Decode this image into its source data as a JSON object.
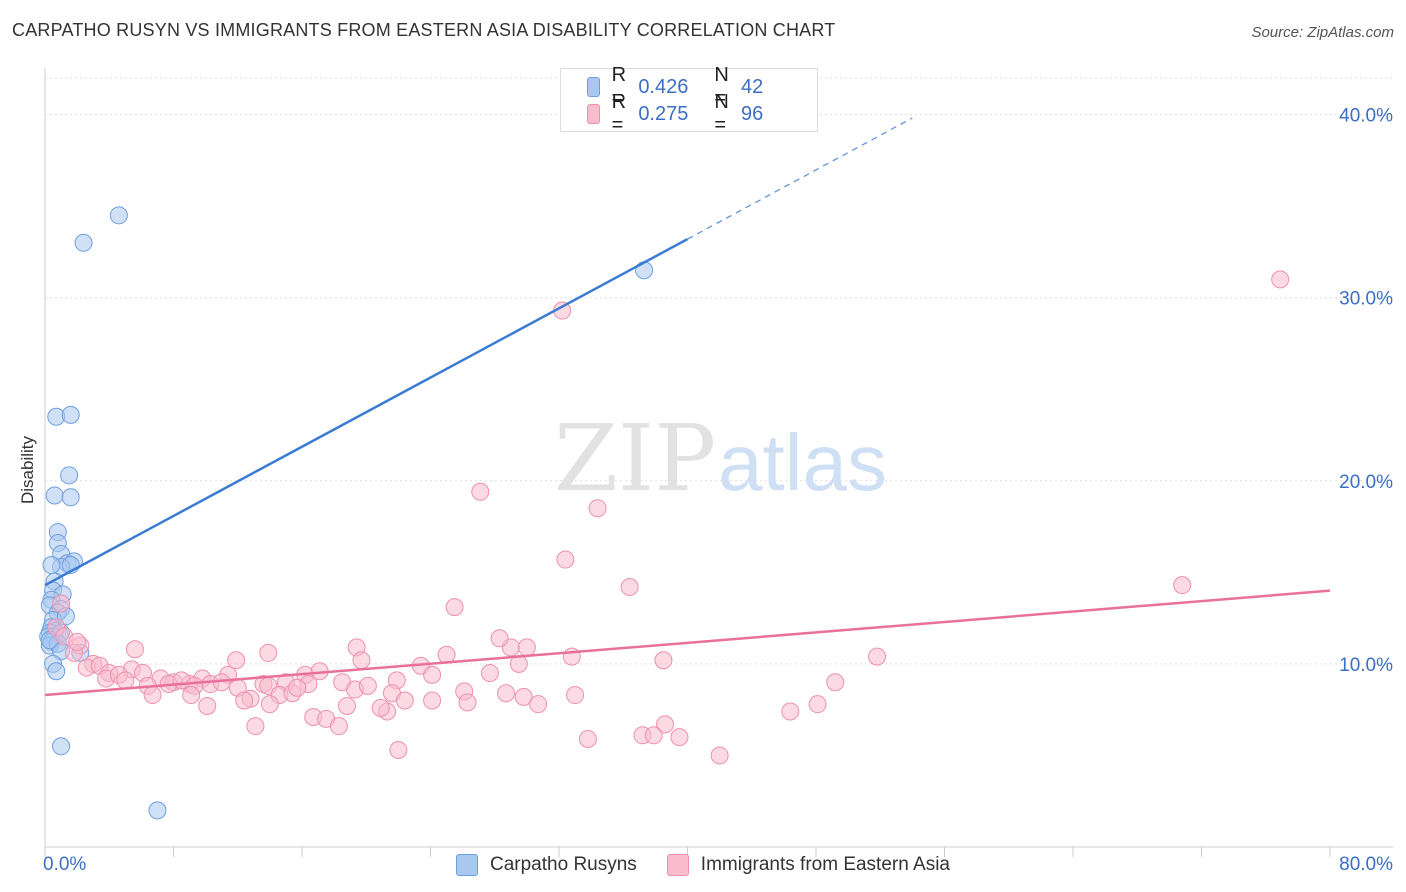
{
  "title": "CARPATHO RUSYN VS IMMIGRANTS FROM EASTERN ASIA DISABILITY CORRELATION CHART",
  "source": "Source: ZipAtlas.com",
  "watermark": {
    "zip": "ZIP",
    "atlas": "atlas"
  },
  "legend_top": [
    {
      "r_label": "R =",
      "r_value": "0.426",
      "n_label": "N =",
      "n_value": "42",
      "color": "#a9c8f0",
      "border": "#6f9fe0"
    },
    {
      "r_label": "R =",
      "r_value": "0.275",
      "n_label": "N =",
      "n_value": "96",
      "color": "#f8bccd",
      "border": "#ee90ad"
    }
  ],
  "chart_data": {
    "type": "scatter",
    "title": "CARPATHO RUSYN VS IMMIGRANTS FROM EASTERN ASIA DISABILITY CORRELATION CHART",
    "xlabel": "",
    "ylabel": "Disability",
    "xlim": [
      0,
      80
    ],
    "ylim": [
      0,
      42
    ],
    "x_ticks": [
      0,
      8,
      16,
      24,
      32,
      40,
      48,
      56,
      64,
      72,
      80
    ],
    "x_tick_labels_shown": {
      "0": "0.0%",
      "80": "80.0%"
    },
    "y_ticks": [
      10,
      20,
      30,
      40
    ],
    "y_tick_labels": [
      "10.0%",
      "20.0%",
      "30.0%",
      "40.0%"
    ],
    "grid": true,
    "legend_placement": "bottom",
    "series": [
      {
        "name": "Carpatho Rusyns",
        "color": "#a9c8f0",
        "edge": "#6f9fe0",
        "trend": {
          "x0": 0,
          "y0": 14.3,
          "x1": 40,
          "y1": 33.2,
          "dash_to_x": 54,
          "line_color": "#3a7bd5"
        },
        "points": [
          [
            4.6,
            34.5
          ],
          [
            2.4,
            33.0
          ],
          [
            37.3,
            31.5
          ],
          [
            0.7,
            23.5
          ],
          [
            1.6,
            23.6
          ],
          [
            1.5,
            20.3
          ],
          [
            0.6,
            19.2
          ],
          [
            1.6,
            19.1
          ],
          [
            0.8,
            17.2
          ],
          [
            0.8,
            16.6
          ],
          [
            1.0,
            16.0
          ],
          [
            1.4,
            15.5
          ],
          [
            1.8,
            15.6
          ],
          [
            1.0,
            15.3
          ],
          [
            1.6,
            15.4
          ],
          [
            0.4,
            15.4
          ],
          [
            0.6,
            14.5
          ],
          [
            0.5,
            14.0
          ],
          [
            1.1,
            13.8
          ],
          [
            0.4,
            13.5
          ],
          [
            0.3,
            13.2
          ],
          [
            1.0,
            13.0
          ],
          [
            0.8,
            12.8
          ],
          [
            0.5,
            12.4
          ],
          [
            1.3,
            12.6
          ],
          [
            0.4,
            12.0
          ],
          [
            0.6,
            11.8
          ],
          [
            0.3,
            11.7
          ],
          [
            0.9,
            11.6
          ],
          [
            0.2,
            11.5
          ],
          [
            0.6,
            11.5
          ],
          [
            1.0,
            11.7
          ],
          [
            0.4,
            11.2
          ],
          [
            0.3,
            11.0
          ],
          [
            0.8,
            11.1
          ],
          [
            1.0,
            10.7
          ],
          [
            2.2,
            10.6
          ],
          [
            0.5,
            10.0
          ],
          [
            0.7,
            9.6
          ],
          [
            1.0,
            5.5
          ],
          [
            7.0,
            2.0
          ],
          [
            0.3,
            11.3
          ]
        ]
      },
      {
        "name": "Immigrants from Eastern Asia",
        "color": "#f8bccd",
        "edge": "#ee90ad",
        "trend": {
          "x0": 0,
          "y0": 8.3,
          "x1": 80,
          "y1": 14.0,
          "line_color": "#e8709a"
        },
        "points": [
          [
            76.9,
            31.0
          ],
          [
            32.2,
            29.3
          ],
          [
            27.1,
            19.4
          ],
          [
            34.4,
            18.5
          ],
          [
            32.4,
            15.7
          ],
          [
            36.4,
            14.2
          ],
          [
            70.8,
            14.3
          ],
          [
            25.5,
            13.1
          ],
          [
            1.0,
            13.3
          ],
          [
            0.7,
            12.0
          ],
          [
            1.2,
            11.5
          ],
          [
            2.2,
            11.0
          ],
          [
            1.8,
            10.6
          ],
          [
            5.6,
            10.8
          ],
          [
            19.4,
            10.9
          ],
          [
            29.0,
            10.9
          ],
          [
            30.0,
            10.9
          ],
          [
            28.3,
            11.4
          ],
          [
            13.9,
            10.6
          ],
          [
            11.9,
            10.2
          ],
          [
            19.7,
            10.2
          ],
          [
            25.0,
            10.5
          ],
          [
            32.8,
            10.4
          ],
          [
            51.8,
            10.4
          ],
          [
            38.5,
            10.2
          ],
          [
            3.0,
            10.0
          ],
          [
            2.6,
            9.8
          ],
          [
            3.4,
            9.9
          ],
          [
            4.0,
            9.5
          ],
          [
            5.4,
            9.7
          ],
          [
            6.1,
            9.5
          ],
          [
            7.2,
            9.2
          ],
          [
            8.0,
            9.0
          ],
          [
            9.0,
            8.9
          ],
          [
            9.8,
            9.2
          ],
          [
            11.4,
            9.4
          ],
          [
            13.6,
            8.9
          ],
          [
            15.0,
            9.0
          ],
          [
            16.2,
            9.4
          ],
          [
            17.1,
            9.6
          ],
          [
            18.5,
            9.0
          ],
          [
            21.9,
            9.1
          ],
          [
            23.4,
            9.9
          ],
          [
            27.7,
            9.5
          ],
          [
            29.5,
            10.0
          ],
          [
            3.8,
            9.2
          ],
          [
            4.6,
            9.4
          ],
          [
            6.4,
            8.8
          ],
          [
            7.7,
            8.9
          ],
          [
            8.5,
            9.1
          ],
          [
            9.3,
            8.8
          ],
          [
            10.3,
            8.9
          ],
          [
            11.0,
            9.0
          ],
          [
            12.0,
            8.7
          ],
          [
            12.8,
            8.1
          ],
          [
            13.9,
            8.8
          ],
          [
            14.6,
            8.3
          ],
          [
            15.4,
            8.4
          ],
          [
            16.4,
            8.9
          ],
          [
            19.3,
            8.6
          ],
          [
            20.1,
            8.8
          ],
          [
            21.6,
            8.4
          ],
          [
            22.4,
            8.0
          ],
          [
            24.1,
            8.0
          ],
          [
            26.1,
            8.5
          ],
          [
            28.7,
            8.4
          ],
          [
            29.8,
            8.2
          ],
          [
            30.7,
            7.8
          ],
          [
            33.0,
            8.3
          ],
          [
            49.2,
            9.0
          ],
          [
            6.7,
            8.3
          ],
          [
            9.1,
            8.3
          ],
          [
            10.1,
            7.7
          ],
          [
            12.4,
            8.0
          ],
          [
            14.0,
            7.8
          ],
          [
            18.8,
            7.7
          ],
          [
            21.3,
            7.4
          ],
          [
            20.9,
            7.6
          ],
          [
            26.3,
            7.9
          ],
          [
            46.4,
            7.4
          ],
          [
            48.1,
            7.8
          ],
          [
            13.1,
            6.6
          ],
          [
            16.7,
            7.1
          ],
          [
            17.5,
            7.0
          ],
          [
            18.3,
            6.6
          ],
          [
            24.1,
            9.4
          ],
          [
            38.6,
            6.7
          ],
          [
            37.2,
            6.1
          ],
          [
            37.9,
            6.1
          ],
          [
            39.5,
            6.0
          ],
          [
            33.8,
            5.9
          ],
          [
            22.0,
            5.3
          ],
          [
            42.0,
            5.0
          ],
          [
            15.7,
            8.7
          ],
          [
            5.0,
            9.1
          ],
          [
            2.0,
            11.2
          ]
        ]
      }
    ]
  },
  "legend_bottom": [
    {
      "label": "Carpatho Rusyns",
      "color": "#a9c8f0",
      "border": "#6f9fe0"
    },
    {
      "label": "Immigrants from Eastern Asia",
      "color": "#f8bccd",
      "border": "#ee90ad"
    }
  ]
}
